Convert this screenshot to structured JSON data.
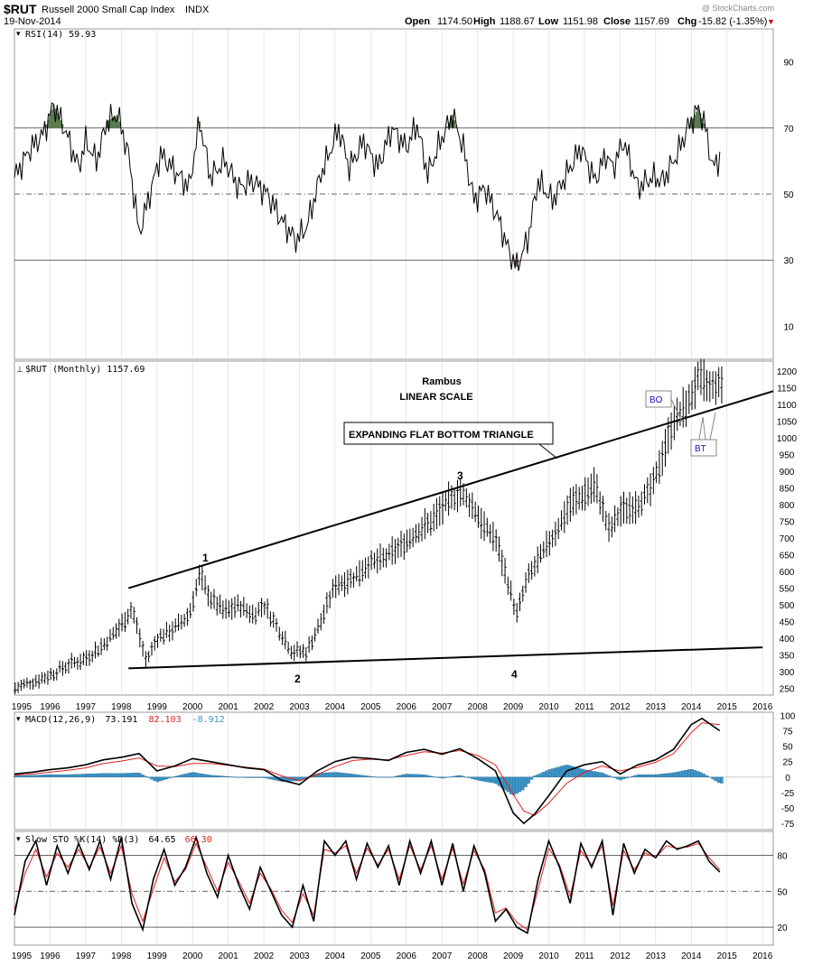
{
  "header": {
    "symbol": "$RUT",
    "name": "Russell 2000 Small Cap Index",
    "exchange": "INDX",
    "date": "19-Nov-2014",
    "open_label": "Open",
    "open": "1174.50",
    "high_label": "High",
    "high": "1188.67",
    "low_label": "Low",
    "low": "1151.98",
    "close_label": "Close",
    "close": "1157.69",
    "chg_label": "Chg",
    "chg": "-15.82 (-1.35%)",
    "chg_marker": "▼",
    "watermark": "@ StockCharts.com"
  },
  "colors": {
    "up_area": "#5a7a4f",
    "down_area": "#8a6060",
    "macd_hist": "#3a95c8",
    "signal": "#e02020",
    "blue_label": "#1010c0",
    "chg_red": "#cc0000",
    "grid": "#d8d8d8"
  },
  "chart_data": [
    {
      "type": "line",
      "panel": "RSI",
      "legend": "RSI(14) 59.93",
      "ylim": [
        0,
        100
      ],
      "yticks": [
        10,
        30,
        50,
        70,
        90
      ],
      "reference_lines": [
        70,
        50,
        30
      ],
      "x": [
        1995.0,
        1995.4,
        1995.8,
        1996.1,
        1996.4,
        1996.8,
        1997.0,
        1997.3,
        1997.6,
        1997.9,
        1998.2,
        1998.5,
        1998.7,
        1999.1,
        1999.5,
        1999.9,
        2000.2,
        2000.5,
        2000.9,
        2001.3,
        2001.7,
        2002.1,
        2002.5,
        2002.9,
        2003.2,
        2003.6,
        2003.9,
        2004.1,
        2004.4,
        2004.8,
        2005.2,
        2005.6,
        2006.0,
        2006.3,
        2006.6,
        2007.0,
        2007.3,
        2007.6,
        2007.9,
        2008.2,
        2008.6,
        2008.9,
        2009.1,
        2009.4,
        2009.7,
        2010.1,
        2010.5,
        2010.9,
        2011.3,
        2011.6,
        2011.8,
        2012.1,
        2012.5,
        2012.9,
        2013.2,
        2013.6,
        2013.9,
        2014.2,
        2014.4,
        2014.6,
        2014.8
      ],
      "values": [
        55,
        63,
        68,
        77,
        70,
        58,
        66,
        60,
        72,
        74,
        62,
        38,
        46,
        62,
        57,
        52,
        72,
        55,
        60,
        52,
        54,
        50,
        42,
        36,
        40,
        56,
        64,
        70,
        58,
        66,
        58,
        70,
        64,
        71,
        56,
        67,
        74,
        64,
        48,
        52,
        42,
        32,
        28,
        36,
        54,
        48,
        56,
        64,
        54,
        62,
        58,
        66,
        52,
        55,
        54,
        62,
        70,
        76,
        70,
        58,
        61
      ]
    },
    {
      "type": "bar",
      "panel": "Price",
      "legend": "$RUT (Monthly) 1157.69",
      "style": "monthly OHLC bars",
      "ylim": [
        230,
        1230
      ],
      "yticks": [
        250,
        300,
        350,
        400,
        450,
        500,
        550,
        600,
        650,
        700,
        750,
        800,
        850,
        900,
        950,
        1000,
        1050,
        1100,
        1150,
        1200
      ],
      "x": [
        1995.0,
        1995.5,
        1996.0,
        1996.5,
        1997.0,
        1997.5,
        1998.0,
        1998.3,
        1998.7,
        1999.0,
        1999.5,
        1999.9,
        2000.2,
        2000.5,
        2000.9,
        2001.3,
        2001.7,
        2002.0,
        2002.4,
        2002.8,
        2003.2,
        2003.6,
        2004.0,
        2004.5,
        2004.9,
        2005.4,
        2005.9,
        2006.3,
        2006.7,
        2007.1,
        2007.5,
        2007.9,
        2008.2,
        2008.5,
        2008.9,
        2009.1,
        2009.4,
        2009.8,
        2010.2,
        2010.6,
        2011.0,
        2011.3,
        2011.7,
        2012.0,
        2012.5,
        2012.9,
        2013.2,
        2013.5,
        2013.9,
        2014.2,
        2014.5,
        2014.8
      ],
      "values": [
        250,
        270,
        290,
        320,
        340,
        380,
        440,
        490,
        330,
        400,
        430,
        470,
        590,
        520,
        480,
        500,
        470,
        500,
        430,
        360,
        360,
        450,
        560,
        580,
        620,
        640,
        680,
        720,
        750,
        800,
        840,
        790,
        730,
        700,
        550,
        470,
        580,
        650,
        720,
        800,
        830,
        860,
        720,
        780,
        800,
        850,
        950,
        1050,
        1100,
        1180,
        1150,
        1160
      ],
      "title": "Rambus",
      "subtitle": "LINEAR SCALE",
      "annotations": {
        "pattern_label": "EXPANDING FLAT BOTTOM TRIANGLE",
        "points": [
          "1",
          "2",
          "3",
          "4"
        ],
        "breakout": "BO",
        "backtest": "BT"
      },
      "trendlines": [
        {
          "name": "upper",
          "from": [
            1998.2,
            550
          ],
          "to": [
            2016.3,
            1140
          ]
        },
        {
          "name": "lower",
          "from": [
            1998.2,
            310
          ],
          "to": [
            2016.0,
            373
          ]
        }
      ]
    },
    {
      "type": "line",
      "panel": "MACD",
      "legend_name": "MACD(12,26,9)",
      "legend_macd": "73.191",
      "legend_signal": "82.103",
      "legend_hist": "-8.912",
      "ylim": [
        -85,
        105
      ],
      "yticks": [
        -75,
        -50,
        -25,
        0,
        25,
        50,
        75,
        100
      ],
      "x": [
        1995.0,
        1995.5,
        1996.0,
        1996.5,
        1997.0,
        1997.5,
        1998.0,
        1998.5,
        1999.0,
        1999.5,
        2000.0,
        2000.5,
        2001.0,
        2001.5,
        2002.0,
        2002.5,
        2003.0,
        2003.5,
        2004.0,
        2004.5,
        2005.0,
        2005.5,
        2006.0,
        2006.5,
        2007.0,
        2007.5,
        2008.0,
        2008.5,
        2009.0,
        2009.3,
        2009.6,
        2010.0,
        2010.5,
        2011.0,
        2011.5,
        2012.0,
        2012.5,
        2013.0,
        2013.5,
        2014.0,
        2014.3,
        2014.8
      ],
      "series": [
        {
          "name": "MACD",
          "values": [
            5,
            8,
            12,
            15,
            20,
            28,
            32,
            38,
            10,
            18,
            30,
            25,
            20,
            15,
            12,
            -5,
            -12,
            10,
            25,
            32,
            30,
            27,
            40,
            45,
            37,
            46,
            30,
            10,
            -58,
            -75,
            -60,
            -30,
            10,
            20,
            25,
            5,
            20,
            28,
            45,
            85,
            95,
            75
          ]
        },
        {
          "name": "Signal",
          "values": [
            3,
            5,
            8,
            11,
            15,
            22,
            26,
            31,
            18,
            17,
            22,
            22,
            19,
            16,
            13,
            2,
            -6,
            4,
            17,
            27,
            29,
            28,
            35,
            41,
            39,
            43,
            35,
            20,
            -28,
            -55,
            -62,
            -42,
            -10,
            8,
            18,
            10,
            16,
            24,
            38,
            72,
            88,
            85
          ]
        }
      ]
    },
    {
      "type": "line",
      "panel": "Slow STO",
      "legend_name": "Slow STO %K(14) %D(3)",
      "legend_k": "64.65",
      "legend_d": "66.30",
      "ylim": [
        5,
        100
      ],
      "yticks": [
        20,
        50,
        80
      ],
      "reference_lines": [
        80,
        50,
        20
      ],
      "x": [
        1995.0,
        1995.3,
        1995.6,
        1995.9,
        1996.2,
        1996.5,
        1996.8,
        1997.1,
        1997.4,
        1997.7,
        1998.0,
        1998.3,
        1998.6,
        1998.9,
        1999.2,
        1999.5,
        1999.8,
        2000.1,
        2000.4,
        2000.7,
        2001.0,
        2001.3,
        2001.6,
        2001.9,
        2002.2,
        2002.5,
        2002.8,
        2003.1,
        2003.4,
        2003.7,
        2004.0,
        2004.3,
        2004.6,
        2004.9,
        2005.2,
        2005.5,
        2005.8,
        2006.1,
        2006.4,
        2006.7,
        2007.0,
        2007.3,
        2007.6,
        2007.9,
        2008.2,
        2008.5,
        2008.8,
        2009.1,
        2009.4,
        2009.7,
        2010.0,
        2010.3,
        2010.6,
        2010.9,
        2011.2,
        2011.5,
        2011.8,
        2012.1,
        2012.4,
        2012.7,
        2013.0,
        2013.3,
        2013.6,
        2013.9,
        2014.2,
        2014.5,
        2014.8
      ],
      "series": [
        {
          "name": "%K",
          "values": [
            30,
            75,
            92,
            55,
            88,
            65,
            90,
            68,
            92,
            60,
            95,
            40,
            18,
            60,
            85,
            55,
            70,
            95,
            65,
            45,
            80,
            55,
            35,
            70,
            50,
            30,
            20,
            55,
            25,
            92,
            80,
            92,
            60,
            90,
            70,
            88,
            55,
            92,
            65,
            92,
            55,
            90,
            50,
            88,
            65,
            25,
            35,
            20,
            15,
            60,
            92,
            70,
            40,
            90,
            70,
            92,
            30,
            90,
            65,
            85,
            78,
            92,
            85,
            88,
            92,
            75,
            66
          ]
        },
        {
          "name": "%D",
          "values": [
            35,
            65,
            85,
            62,
            82,
            70,
            85,
            70,
            87,
            65,
            88,
            48,
            25,
            52,
            78,
            58,
            68,
            90,
            70,
            50,
            74,
            58,
            40,
            65,
            52,
            34,
            24,
            48,
            30,
            85,
            82,
            88,
            65,
            86,
            72,
            85,
            60,
            88,
            68,
            88,
            60,
            86,
            56,
            84,
            68,
            32,
            36,
            24,
            18,
            52,
            86,
            72,
            46,
            84,
            72,
            88,
            38,
            84,
            68,
            82,
            78,
            88,
            86,
            87,
            90,
            78,
            68
          ]
        }
      ]
    }
  ],
  "xaxis": {
    "labels": [
      "1995",
      "1996",
      "1997",
      "1998",
      "1999",
      "2000",
      "2001",
      "2002",
      "2003",
      "2004",
      "2005",
      "2006",
      "2007",
      "2008",
      "2009",
      "2010",
      "2011",
      "2012",
      "2013",
      "2014",
      "2015",
      "2016"
    ]
  }
}
